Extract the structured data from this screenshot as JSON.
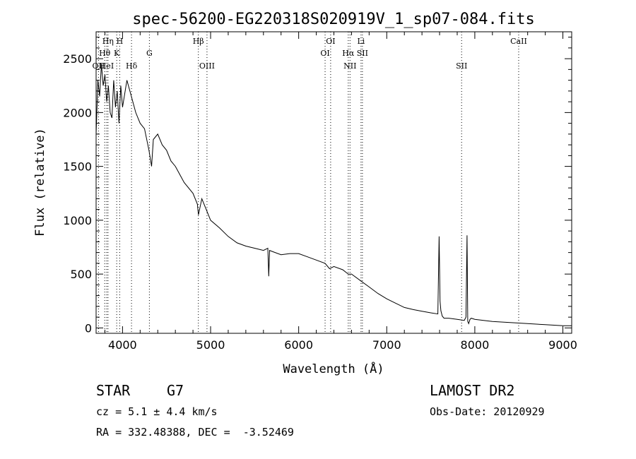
{
  "chart_data": {
    "type": "line",
    "title": "spec-56200-EG220318S020919V_1_sp07-084.fits",
    "xlabel": "Wavelength (Å)",
    "ylabel": "Flux (relative)",
    "xlim": [
      3700,
      9100
    ],
    "ylim": [
      -50,
      2750
    ],
    "x_ticks": [
      4000,
      5000,
      6000,
      7000,
      8000,
      9000
    ],
    "y_ticks": [
      0,
      500,
      1000,
      1500,
      2000,
      2500
    ],
    "grid": false,
    "series": [
      {
        "x": [
          3700,
          3720,
          3740,
          3760,
          3780,
          3800,
          3820,
          3840,
          3860,
          3880,
          3900,
          3920,
          3940,
          3960,
          3980,
          4000,
          4050,
          4100,
          4150,
          4200,
          4250,
          4300,
          4330,
          4350,
          4400,
          4450,
          4500,
          4550,
          4600,
          4700,
          4800,
          4850,
          4862,
          4900,
          4950,
          5000,
          5100,
          5200,
          5300,
          5400,
          5500,
          5600,
          5650,
          5660,
          5670,
          5700,
          5800,
          5900,
          6000,
          6100,
          6200,
          6300,
          6350,
          6400,
          6500,
          6563,
          6600,
          6700,
          6800,
          6900,
          7000,
          7100,
          7200,
          7300,
          7400,
          7500,
          7580,
          7595,
          7605,
          7615,
          7630,
          7650,
          7700,
          7800,
          7880,
          7900,
          7912,
          7920,
          7930,
          7945,
          7960,
          8000,
          8200,
          8400,
          8600,
          8800,
          9000,
          9100
        ],
        "values": [
          1800,
          2300,
          2150,
          2450,
          2250,
          2350,
          2100,
          2250,
          2000,
          1950,
          2300,
          2050,
          2200,
          1900,
          2250,
          2050,
          2300,
          2150,
          2000,
          1900,
          1850,
          1650,
          1500,
          1750,
          1800,
          1700,
          1650,
          1550,
          1500,
          1350,
          1250,
          1150,
          1050,
          1200,
          1100,
          1000,
          930,
          850,
          790,
          760,
          740,
          720,
          740,
          480,
          720,
          710,
          680,
          690,
          690,
          660,
          630,
          600,
          550,
          570,
          540,
          500,
          500,
          440,
          380,
          320,
          270,
          230,
          190,
          170,
          155,
          140,
          130,
          850,
          250,
          160,
          110,
          90,
          90,
          80,
          70,
          100,
          860,
          60,
          40,
          80,
          90,
          80,
          60,
          50,
          40,
          30,
          20,
          20
        ]
      }
    ],
    "lines": [
      {
        "label": "OII",
        "x": 3727,
        "row": 3
      },
      {
        "label": "Hθ",
        "x": 3798,
        "row": 2
      },
      {
        "label": "HeI",
        "x": 3820,
        "row": 3
      },
      {
        "label": "Hη",
        "x": 3835,
        "row": 1
      },
      {
        "label": "H",
        "x": 3968,
        "row": 1
      },
      {
        "label": "K",
        "x": 3934,
        "row": 2
      },
      {
        "label": "Hδ",
        "x": 4102,
        "row": 3
      },
      {
        "label": "G",
        "x": 4305,
        "row": 2
      },
      {
        "label": "Hβ",
        "x": 4861,
        "row": 1
      },
      {
        "label": "OIII",
        "x": 4959,
        "row": 3
      },
      {
        "label": "OI",
        "x": 6363,
        "row": 1
      },
      {
        "label": "OI",
        "x": 6300,
        "row": 2
      },
      {
        "label": "Hα",
        "x": 6563,
        "row": 2
      },
      {
        "label": "NII",
        "x": 6583,
        "row": 3
      },
      {
        "label": "Li",
        "x": 6708,
        "row": 1
      },
      {
        "label": "SII",
        "x": 6724,
        "row": 2
      },
      {
        "label": "SII",
        "x": 7850,
        "row": 3
      },
      {
        "label": "CaII",
        "x": 8498,
        "row": 1
      }
    ]
  },
  "info": {
    "class_label": "STAR",
    "subclass": "G7",
    "survey": "LAMOST DR2",
    "cz": "cz = 5.1 ± 4.4 km/s",
    "obs_date": "Obs-Date: 20120929",
    "coords": "RA = 332.48388, DEC =  -3.52469"
  }
}
